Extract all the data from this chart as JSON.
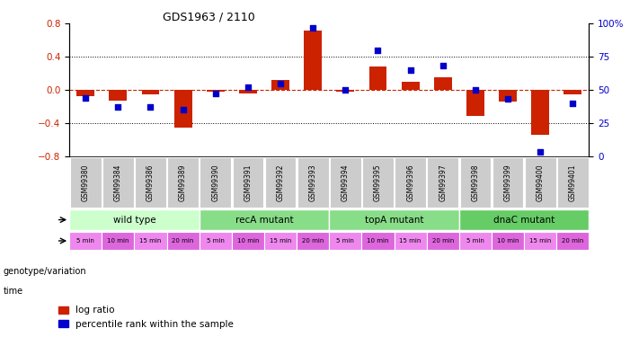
{
  "title": "GDS1963 / 2110",
  "samples": [
    "GSM99380",
    "GSM99384",
    "GSM99386",
    "GSM99389",
    "GSM99390",
    "GSM99391",
    "GSM99392",
    "GSM99393",
    "GSM99394",
    "GSM99395",
    "GSM99396",
    "GSM99397",
    "GSM99398",
    "GSM99399",
    "GSM99400",
    "GSM99401"
  ],
  "log_ratio": [
    -0.08,
    -0.13,
    -0.06,
    -0.46,
    -0.02,
    -0.04,
    0.12,
    0.72,
    -0.02,
    0.28,
    0.1,
    0.15,
    -0.32,
    -0.14,
    -0.54,
    -0.05
  ],
  "pct_rank": [
    44,
    37,
    37,
    35,
    47,
    52,
    55,
    97,
    50,
    80,
    65,
    68,
    50,
    43,
    3,
    40
  ],
  "bar_color": "#cc2200",
  "dot_color": "#0000cc",
  "bg_color": "#ffffff",
  "ylim_left": [
    -0.8,
    0.8
  ],
  "ylim_right": [
    0,
    100
  ],
  "yticks_left": [
    -0.8,
    -0.4,
    0.0,
    0.4,
    0.8
  ],
  "yticks_right": [
    0,
    25,
    50,
    75,
    100
  ],
  "ytick_labels_right": [
    "0",
    "25",
    "50",
    "75",
    "100%"
  ],
  "hline_color": "#cc2200",
  "dotted_lines": [
    -0.4,
    0.4
  ],
  "genotype_groups": [
    {
      "label": "wild type",
      "start": 0,
      "end": 4,
      "color": "#ccffcc"
    },
    {
      "label": "recA mutant",
      "start": 4,
      "end": 8,
      "color": "#88dd88"
    },
    {
      "label": "topA mutant",
      "start": 8,
      "end": 12,
      "color": "#88dd88"
    },
    {
      "label": "dnaC mutant",
      "start": 12,
      "end": 16,
      "color": "#66cc66"
    }
  ],
  "time_labels": [
    "5 min",
    "10 min",
    "15 min",
    "20 min",
    "5 min",
    "10 min",
    "15 min",
    "20 min",
    "5 min",
    "10 min",
    "15 min",
    "20 min",
    "5 min",
    "10 min",
    "15 min",
    "20 min"
  ],
  "time_colors": [
    "#ee88ee",
    "#dd66dd",
    "#ee88ee",
    "#dd66dd",
    "#ee88ee",
    "#dd66dd",
    "#ee88ee",
    "#dd66dd",
    "#ee88ee",
    "#dd66dd",
    "#ee88ee",
    "#dd66dd",
    "#ee88ee",
    "#dd66dd",
    "#ee88ee",
    "#dd66dd"
  ],
  "sample_box_color": "#cccccc",
  "genotype_label": "genotype/variation",
  "time_label": "time",
  "legend_items": [
    {
      "label": "log ratio",
      "color": "#cc2200"
    },
    {
      "label": "percentile rank within the sample",
      "color": "#0000cc"
    }
  ]
}
